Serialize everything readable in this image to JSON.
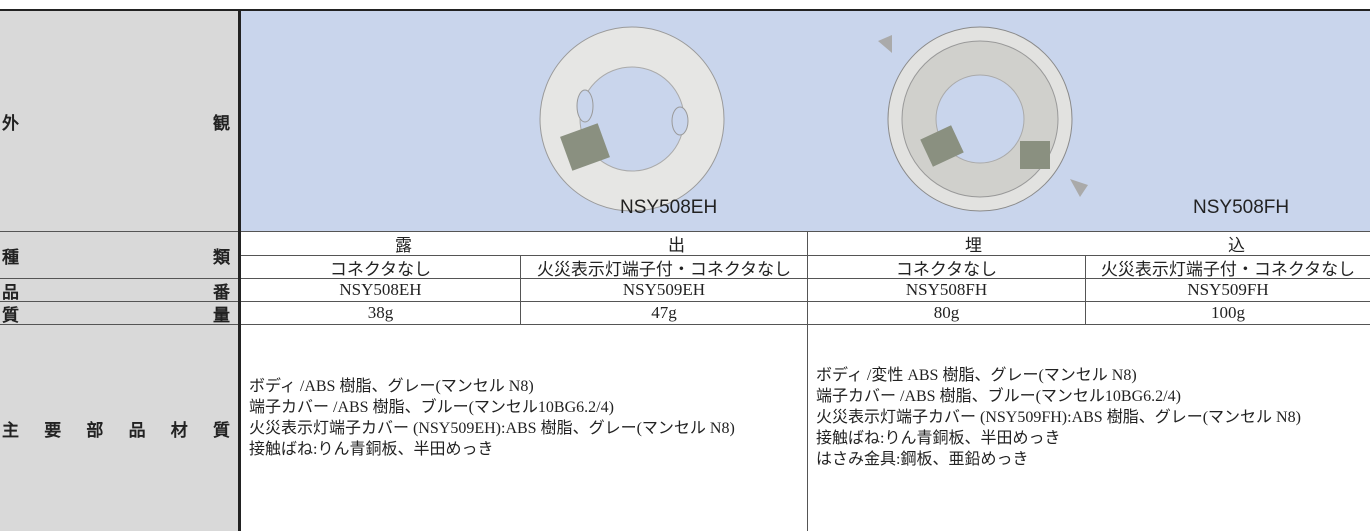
{
  "row_headers": [
    "外観",
    "種類",
    "品番",
    "質量",
    "主要部品材質"
  ],
  "appearance": {
    "images": [
      {
        "label": "NSY508EH"
      },
      {
        "label": "NSY508FH"
      }
    ]
  },
  "types": [
    {
      "name": "露出",
      "variants": [
        "コネクタなし",
        "火災表示灯端子付・コネクタなし"
      ]
    },
    {
      "name": "埋込",
      "variants": [
        "コネクタなし",
        "火災表示灯端子付・コネクタなし"
      ]
    }
  ],
  "part_numbers": [
    "NSY508EH",
    "NSY509EH",
    "NSY508FH",
    "NSY509FH"
  ],
  "weights": [
    "38g",
    "47g",
    "80g",
    "100g"
  ],
  "materials": [
    [
      "ボディ /ABS 樹脂、グレー(マンセル N8)",
      "端子カバー /ABS 樹脂、ブルー(マンセル10BG6.2/4)",
      "火災表示灯端子カバー (NSY509EH):ABS 樹脂、グレー(マンセル N8)",
      "接触ばね:りん青銅板、半田めっき"
    ],
    [
      "ボディ /変性 ABS 樹脂、グレー(マンセル N8)",
      "端子カバー /ABS 樹脂、ブルー(マンセル10BG6.2/4)",
      "火災表示灯端子カバー (NSY509FH):ABS 樹脂、グレー(マンセル N8)",
      "接触ばね:りん青銅板、半田めっき",
      "はさみ金具:鋼板、亜鉛めっき"
    ]
  ]
}
